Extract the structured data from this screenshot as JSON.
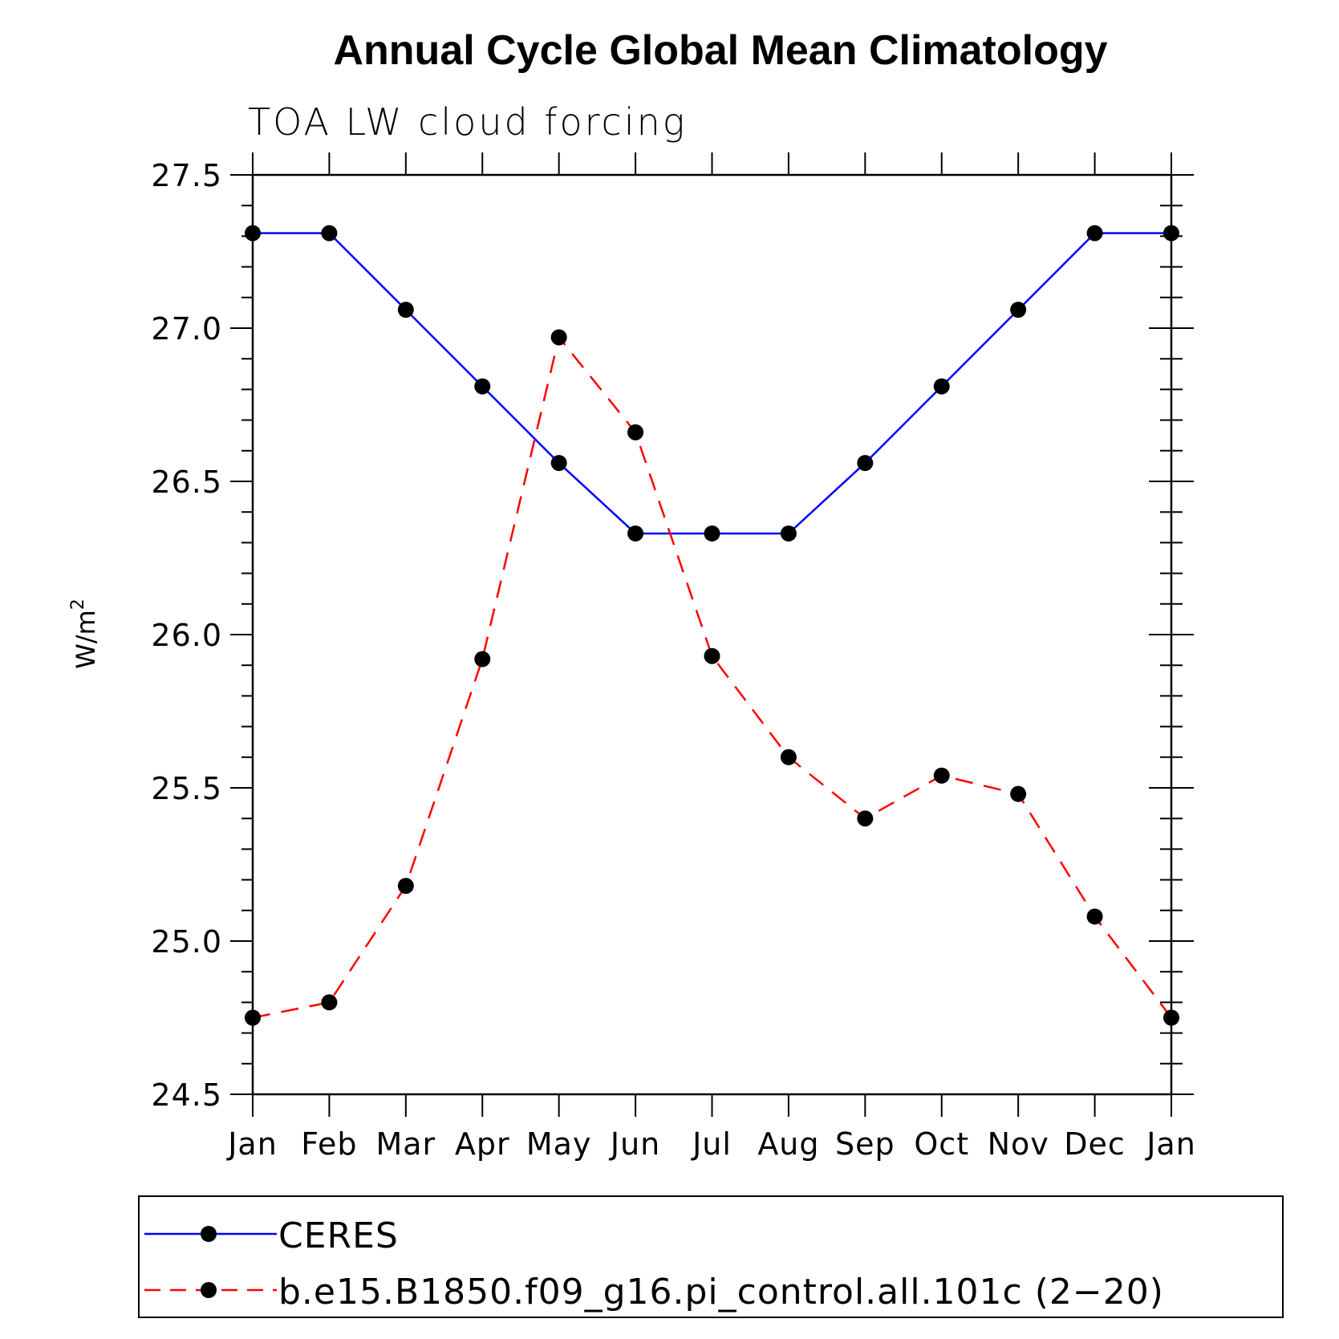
{
  "chart_data": {
    "type": "line",
    "title": "Annual Cycle Global Mean Climatology",
    "subtitle": "TOA LW cloud forcing",
    "ylabel": "W/m",
    "ylabel_superscript": "2",
    "xlabel": "",
    "categories": [
      "Jan",
      "Feb",
      "Mar",
      "Apr",
      "May",
      "Jun",
      "Jul",
      "Aug",
      "Sep",
      "Oct",
      "Nov",
      "Dec",
      "Jan"
    ],
    "ylim": [
      24.5,
      27.5
    ],
    "yticks": [
      24.5,
      25.0,
      25.5,
      26.0,
      26.5,
      27.0,
      27.5
    ],
    "ytick_labels": [
      "24.5",
      "25.0",
      "25.5",
      "26.0",
      "26.5",
      "27.0",
      "27.5"
    ],
    "legend_position": "bottom",
    "series": [
      {
        "name": "CERES",
        "color": "#0000ff",
        "dash": "solid",
        "marker": "circle",
        "values": [
          27.31,
          27.31,
          27.06,
          26.81,
          26.56,
          26.33,
          26.33,
          26.33,
          26.56,
          26.81,
          27.06,
          27.31,
          27.31
        ]
      },
      {
        "name": "b.e15.B1850.f09_g16.pi_control.all.101c (2−20)",
        "color": "#ff0000",
        "dash": "dashed",
        "marker": "circle",
        "values": [
          24.75,
          24.8,
          25.18,
          25.92,
          26.97,
          26.66,
          25.93,
          25.6,
          25.4,
          25.54,
          25.48,
          25.08,
          24.75
        ]
      }
    ]
  }
}
